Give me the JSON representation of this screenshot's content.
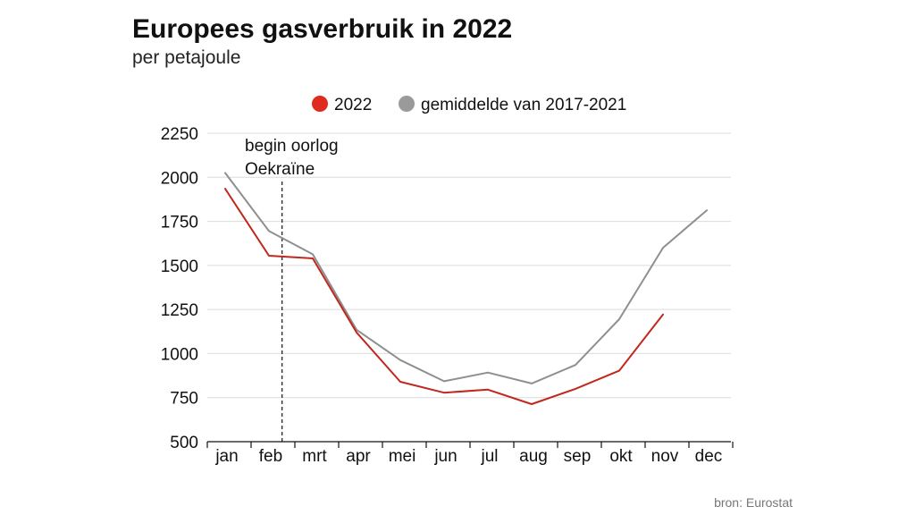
{
  "chart_data": {
    "type": "line",
    "title": "Europees gasverbruik in 2022",
    "subtitle": "per petajoule",
    "categories": [
      "jan",
      "feb",
      "mrt",
      "apr",
      "mei",
      "jun",
      "jul",
      "aug",
      "sep",
      "okt",
      "nov",
      "dec"
    ],
    "series": [
      {
        "name": "2022",
        "color": "#c0281e",
        "marker_color": "#e12a1f",
        "values": [
          1935,
          1555,
          1540,
          1120,
          840,
          778,
          795,
          713,
          800,
          903,
          1222,
          null
        ]
      },
      {
        "name": "gemiddelde van 2017-2021",
        "color": "#8f8f8f",
        "marker_color": "#9a9a9a",
        "values": [
          2025,
          1695,
          1563,
          1135,
          963,
          843,
          892,
          830,
          935,
          1195,
          1600,
          1813
        ]
      }
    ],
    "ylim": [
      500,
      2250
    ],
    "yticks": [
      "2250",
      "2000",
      "1750",
      "1500",
      "1250",
      "1000",
      "750",
      "500"
    ],
    "grid": true,
    "legend_position": "top",
    "annotation": {
      "lines": [
        "begin oorlog",
        "Oekraïne"
      ],
      "x_month_index": 1.3
    },
    "source": "bron: Eurostat"
  }
}
